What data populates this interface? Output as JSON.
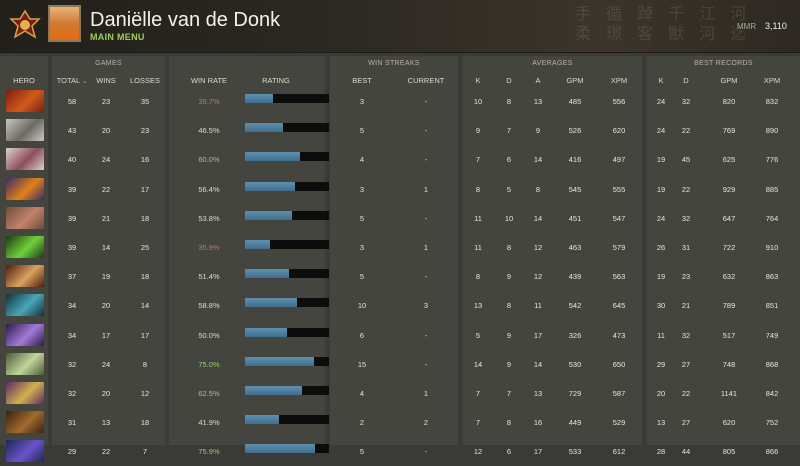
{
  "header": {
    "player_name": "Daniëlle van de Donk",
    "main_menu": "MAIN MENU",
    "mmr_label": "MMR",
    "mmr_value": "3,110",
    "decorative_glyphs": "手 循 踔 千 江 河\n柔 璟 客 獣 河 迄"
  },
  "groups": {
    "games": "GAMES",
    "win_streaks": "WIN STREAKS",
    "averages": "AVERAGES",
    "best_records": "BEST RECORDS"
  },
  "columns": {
    "hero": "HERO",
    "total": "TOTAL",
    "wins": "WINS",
    "losses": "LOSSES",
    "win_rate": "WIN RATE",
    "rating": "RATING",
    "best": "BEST",
    "current": "CURRENT",
    "k": "K",
    "d": "D",
    "a": "A",
    "gpm": "GPM",
    "xpm": "XPM",
    "best_k": "K",
    "best_d": "D",
    "best_gpm": "GPM",
    "best_xpm": "XPM"
  },
  "rows": [
    {
      "hero_colors": [
        "#7a1f10",
        "#d35a1c"
      ],
      "total": "58",
      "wins": "23",
      "losses": "35",
      "win_rate": "39.7%",
      "wr_class": "red",
      "rating": 0.33,
      "best": "3",
      "current": "-",
      "k": "10",
      "d": "8",
      "a": "13",
      "gpm": "485",
      "xpm": "556",
      "bk": "24",
      "bd": "32",
      "bgpm": "820",
      "bxpm": "832"
    },
    {
      "hero_colors": [
        "#c9c7bd",
        "#6c6a62"
      ],
      "total": "43",
      "wins": "20",
      "losses": "23",
      "win_rate": "46.5%",
      "wr_class": "norm",
      "rating": 0.45,
      "best": "5",
      "current": "-",
      "k": "9",
      "d": "7",
      "a": "9",
      "gpm": "526",
      "xpm": "620",
      "bk": "24",
      "bd": "22",
      "bgpm": "769",
      "bxpm": "890"
    },
    {
      "hero_colors": [
        "#ddd1cc",
        "#8c4e5a"
      ],
      "total": "40",
      "wins": "24",
      "losses": "16",
      "win_rate": "60.0%",
      "wr_class": "green",
      "rating": 0.65,
      "best": "4",
      "current": "-",
      "k": "7",
      "d": "6",
      "a": "14",
      "gpm": "416",
      "xpm": "497",
      "bk": "19",
      "bd": "45",
      "bgpm": "625",
      "bxpm": "776"
    },
    {
      "hero_colors": [
        "#3c2a68",
        "#e2801c"
      ],
      "total": "39",
      "wins": "22",
      "losses": "17",
      "win_rate": "56.4%",
      "wr_class": "norm",
      "rating": 0.6,
      "best": "3",
      "current": "1",
      "k": "8",
      "d": "5",
      "a": "8",
      "gpm": "545",
      "xpm": "555",
      "bk": "19",
      "bd": "22",
      "bgpm": "929",
      "bxpm": "885"
    },
    {
      "hero_colors": [
        "#6d4c3c",
        "#c2826a"
      ],
      "total": "39",
      "wins": "21",
      "losses": "18",
      "win_rate": "53.8%",
      "wr_class": "norm",
      "rating": 0.56,
      "best": "5",
      "current": "-",
      "k": "11",
      "d": "10",
      "a": "14",
      "gpm": "451",
      "xpm": "547",
      "bk": "24",
      "bd": "32",
      "bgpm": "647",
      "bxpm": "764"
    },
    {
      "hero_colors": [
        "#1c3a14",
        "#6fd13a"
      ],
      "total": "39",
      "wins": "14",
      "losses": "25",
      "win_rate": "35.9%",
      "wr_class": "red",
      "rating": 0.3,
      "best": "3",
      "current": "1",
      "k": "11",
      "d": "8",
      "a": "12",
      "gpm": "463",
      "xpm": "579",
      "bk": "26",
      "bd": "31",
      "bgpm": "722",
      "bxpm": "910"
    },
    {
      "hero_colors": [
        "#4e1c0e",
        "#d8a25e"
      ],
      "total": "37",
      "wins": "19",
      "losses": "18",
      "win_rate": "51.4%",
      "wr_class": "norm",
      "rating": 0.52,
      "best": "5",
      "current": "-",
      "k": "8",
      "d": "9",
      "a": "12",
      "gpm": "439",
      "xpm": "563",
      "bk": "19",
      "bd": "23",
      "bgpm": "632",
      "bxpm": "863"
    },
    {
      "hero_colors": [
        "#13303a",
        "#4aa6b8"
      ],
      "total": "34",
      "wins": "20",
      "losses": "14",
      "win_rate": "58.8%",
      "wr_class": "norm",
      "rating": 0.62,
      "best": "10",
      "current": "3",
      "k": "13",
      "d": "8",
      "a": "11",
      "gpm": "542",
      "xpm": "645",
      "bk": "30",
      "bd": "21",
      "bgpm": "789",
      "bxpm": "851"
    },
    {
      "hero_colors": [
        "#2a1a4a",
        "#a47ad8"
      ],
      "total": "34",
      "wins": "17",
      "losses": "17",
      "win_rate": "50.0%",
      "wr_class": "norm",
      "rating": 0.5,
      "best": "6",
      "current": "-",
      "k": "5",
      "d": "9",
      "a": "17",
      "gpm": "326",
      "xpm": "473",
      "bk": "11",
      "bd": "32",
      "bgpm": "517",
      "bxpm": "749"
    },
    {
      "hero_colors": [
        "#4a5a38",
        "#c2d49a"
      ],
      "total": "32",
      "wins": "24",
      "losses": "8",
      "win_rate": "75.0%",
      "wr_class": "green",
      "rating": 0.82,
      "best": "15",
      "current": "-",
      "k": "14",
      "d": "9",
      "a": "14",
      "gpm": "530",
      "xpm": "650",
      "bk": "29",
      "bd": "27",
      "bgpm": "748",
      "bxpm": "868"
    },
    {
      "hero_colors": [
        "#5a2a6c",
        "#d4b04a"
      ],
      "total": "32",
      "wins": "20",
      "losses": "12",
      "win_rate": "62.5%",
      "wr_class": "green",
      "rating": 0.68,
      "best": "4",
      "current": "1",
      "k": "7",
      "d": "7",
      "a": "13",
      "gpm": "729",
      "xpm": "587",
      "bk": "20",
      "bd": "22",
      "bgpm": "1141",
      "bxpm": "842"
    },
    {
      "hero_colors": [
        "#3a2210",
        "#a26a2e"
      ],
      "total": "31",
      "wins": "13",
      "losses": "18",
      "win_rate": "41.9%",
      "wr_class": "norm",
      "rating": 0.4,
      "best": "2",
      "current": "2",
      "k": "7",
      "d": "8",
      "a": "16",
      "gpm": "449",
      "xpm": "529",
      "bk": "13",
      "bd": "27",
      "bgpm": "620",
      "bxpm": "752"
    },
    {
      "hero_colors": [
        "#1a2858",
        "#6a54c8"
      ],
      "total": "29",
      "wins": "22",
      "losses": "7",
      "win_rate": "75.9%",
      "wr_class": "green",
      "rating": 0.83,
      "best": "5",
      "current": "-",
      "k": "12",
      "d": "6",
      "a": "17",
      "gpm": "533",
      "xpm": "612",
      "bk": "28",
      "bd": "44",
      "bgpm": "805",
      "bxpm": "866"
    }
  ]
}
